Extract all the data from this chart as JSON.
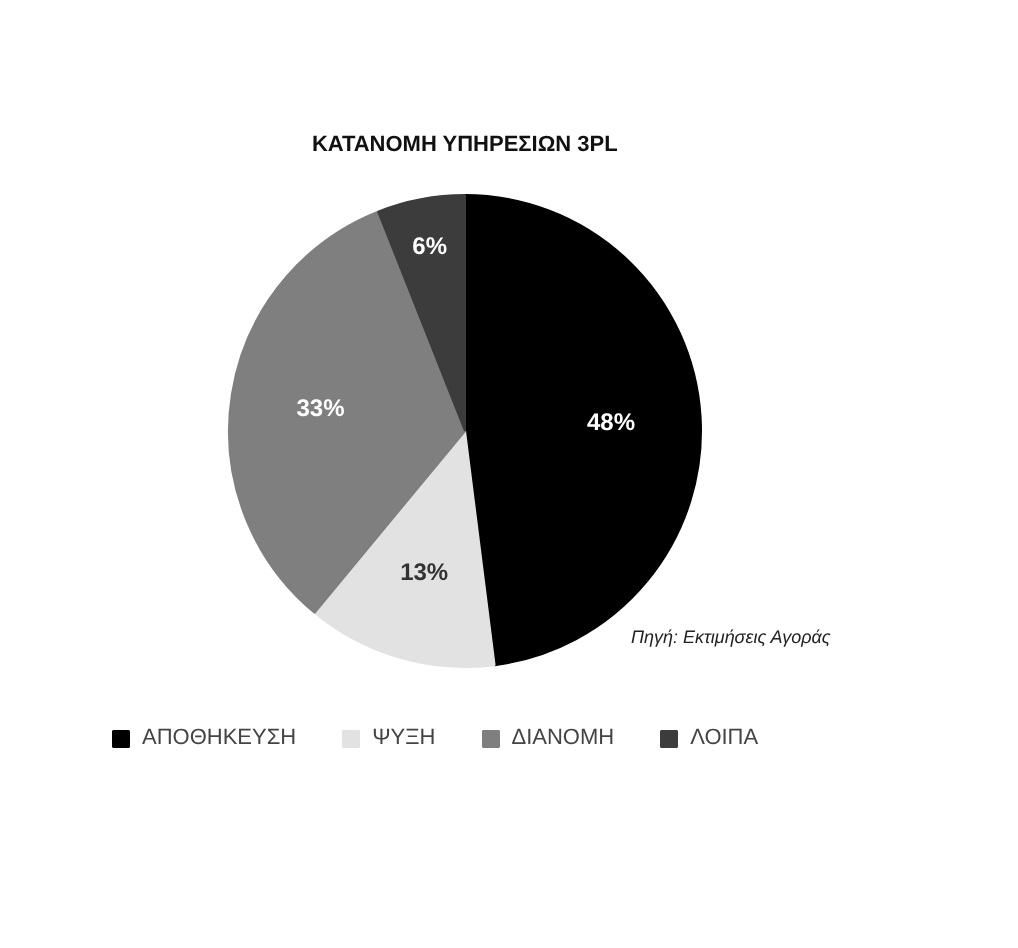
{
  "chart_data": {
    "type": "pie",
    "title": "ΚΑΤΑΝΟΜΗ ΥΠΗΡΕΣΙΩΝ 3PL",
    "categories": [
      "ΑΠΟΘΗΚΕΥΣΗ",
      "ΨΥΞΗ",
      "ΔΙΑΝΟΜΗ",
      "ΛΟΙΠΑ"
    ],
    "values": [
      48,
      13,
      33,
      6
    ],
    "colors": [
      "#000000",
      "#e2e2e2",
      "#7f7f7f",
      "#3c3c3c"
    ],
    "value_labels": [
      "48%",
      "13%",
      "33%",
      "6%"
    ],
    "annotations": [
      "Πηγή: Εκτιμήσεις Αγοράς"
    ],
    "legend": "bottom"
  }
}
